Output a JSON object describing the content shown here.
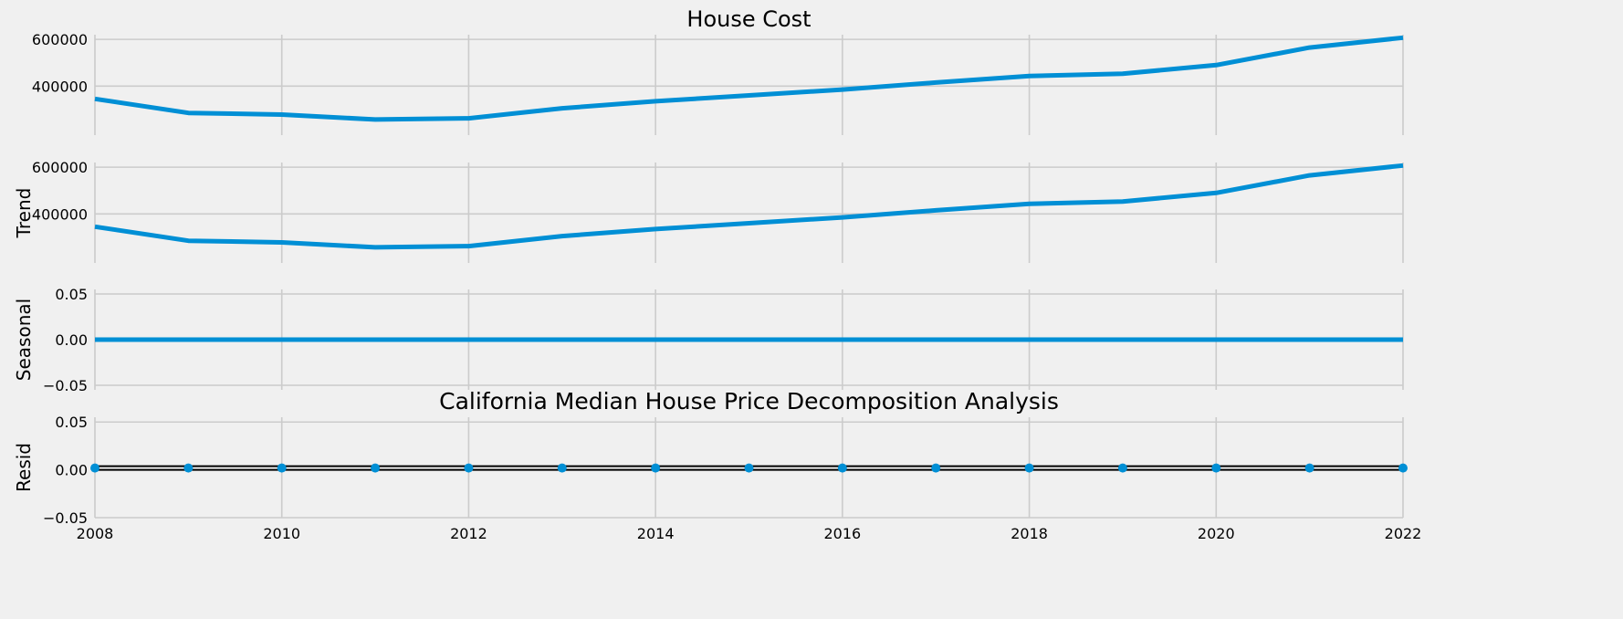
{
  "chart_data": [
    {
      "type": "line",
      "title": "House Cost",
      "ylabel": "",
      "x": [
        2008,
        2009,
        2010,
        2011,
        2012,
        2013,
        2014,
        2015,
        2016,
        2017,
        2018,
        2019,
        2020,
        2021,
        2022
      ],
      "series": [
        {
          "values": [
            345000,
            285000,
            278000,
            257000,
            262000,
            305000,
            335000,
            360000,
            385000,
            415000,
            443000,
            453000,
            490000,
            565000,
            607000
          ]
        }
      ],
      "xlim": [
        2008,
        2022
      ],
      "ylim": [
        190000,
        620000
      ],
      "yticks": [
        400000,
        600000
      ],
      "ytick_labels": [
        "400000",
        "600000"
      ],
      "grid": true
    },
    {
      "type": "line",
      "title": "",
      "ylabel": "Trend",
      "x": [
        2008,
        2009,
        2010,
        2011,
        2012,
        2013,
        2014,
        2015,
        2016,
        2017,
        2018,
        2019,
        2020,
        2021,
        2022
      ],
      "series": [
        {
          "values": [
            345000,
            285000,
            278000,
            257000,
            262000,
            305000,
            335000,
            360000,
            385000,
            415000,
            443000,
            453000,
            490000,
            565000,
            607000
          ]
        }
      ],
      "xlim": [
        2008,
        2022
      ],
      "ylim": [
        190000,
        620000
      ],
      "yticks": [
        400000,
        600000
      ],
      "ytick_labels": [
        "400000",
        "600000"
      ],
      "grid": true
    },
    {
      "type": "line",
      "title": "",
      "ylabel": "Seasonal",
      "x": [
        2008,
        2009,
        2010,
        2011,
        2012,
        2013,
        2014,
        2015,
        2016,
        2017,
        2018,
        2019,
        2020,
        2021,
        2022
      ],
      "series": [
        {
          "values": [
            0,
            0,
            0,
            0,
            0,
            0,
            0,
            0,
            0,
            0,
            0,
            0,
            0,
            0,
            0
          ]
        }
      ],
      "xlim": [
        2008,
        2022
      ],
      "ylim": [
        -0.055,
        0.055
      ],
      "yticks": [
        -0.05,
        0.0,
        0.05
      ],
      "ytick_labels": [
        "−0.05",
        "0.00",
        "0.05"
      ],
      "grid": true
    },
    {
      "type": "scatter",
      "title": "California Median House Price Decomposition Analysis",
      "ylabel": "Resid",
      "x": [
        2008,
        2009,
        2010,
        2011,
        2012,
        2013,
        2014,
        2015,
        2016,
        2017,
        2018,
        2019,
        2020,
        2021,
        2022
      ],
      "series": [
        {
          "values": [
            0,
            0,
            0,
            0,
            0,
            0,
            0,
            0,
            0,
            0,
            0,
            0,
            0,
            0,
            0
          ]
        }
      ],
      "reference_line_y": 0,
      "xlim": [
        2008,
        2022
      ],
      "ylim": [
        -0.05,
        0.055
      ],
      "yticks": [
        -0.05,
        0.0,
        0.05
      ],
      "ytick_labels": [
        "−0.05",
        "0.00",
        "0.05"
      ],
      "xticks": [
        2008,
        2010,
        2012,
        2014,
        2016,
        2018,
        2020,
        2022
      ],
      "xtick_labels": [
        "2008",
        "2010",
        "2012",
        "2014",
        "2016",
        "2018",
        "2020",
        "2022"
      ],
      "grid": true
    }
  ],
  "colors": {
    "series": "#008fd5",
    "grid": "#cbcbcb",
    "background": "#f0f0f0",
    "reference_line": "#000000"
  }
}
